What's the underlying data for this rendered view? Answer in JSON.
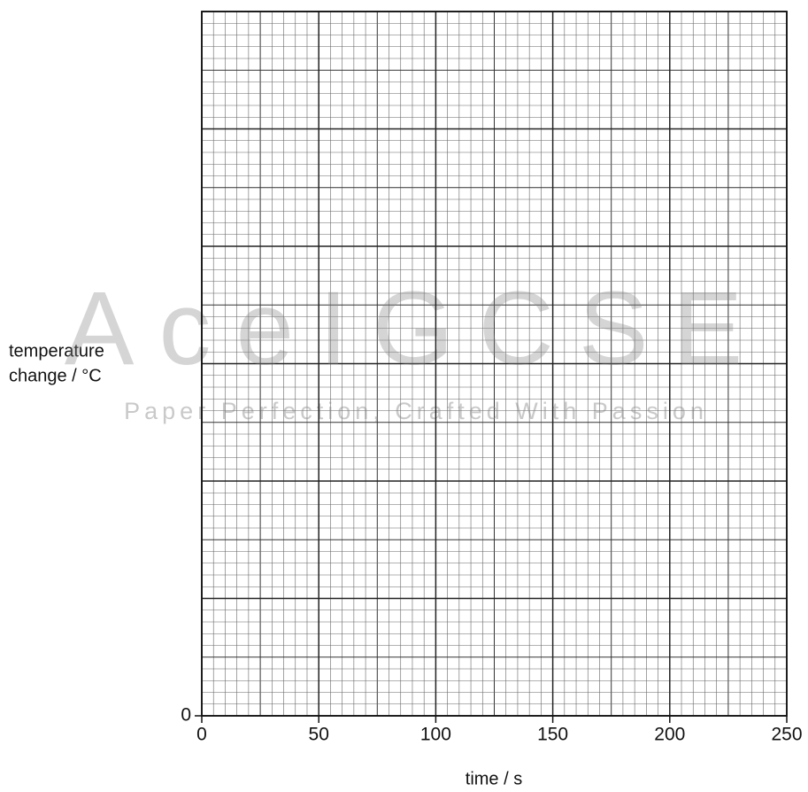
{
  "chart_data": {
    "type": "line",
    "xlabel": "time / s",
    "ylabel": [
      "temperature",
      "change / °C"
    ],
    "xlim": [
      0,
      250
    ],
    "xticks": [
      0,
      50,
      100,
      150,
      200,
      250
    ],
    "yticks": [
      0
    ],
    "grid": true,
    "watermark": {
      "title": "AceIGCSE",
      "subtitle": "Paper Perfection, Crafted With Passion"
    }
  }
}
